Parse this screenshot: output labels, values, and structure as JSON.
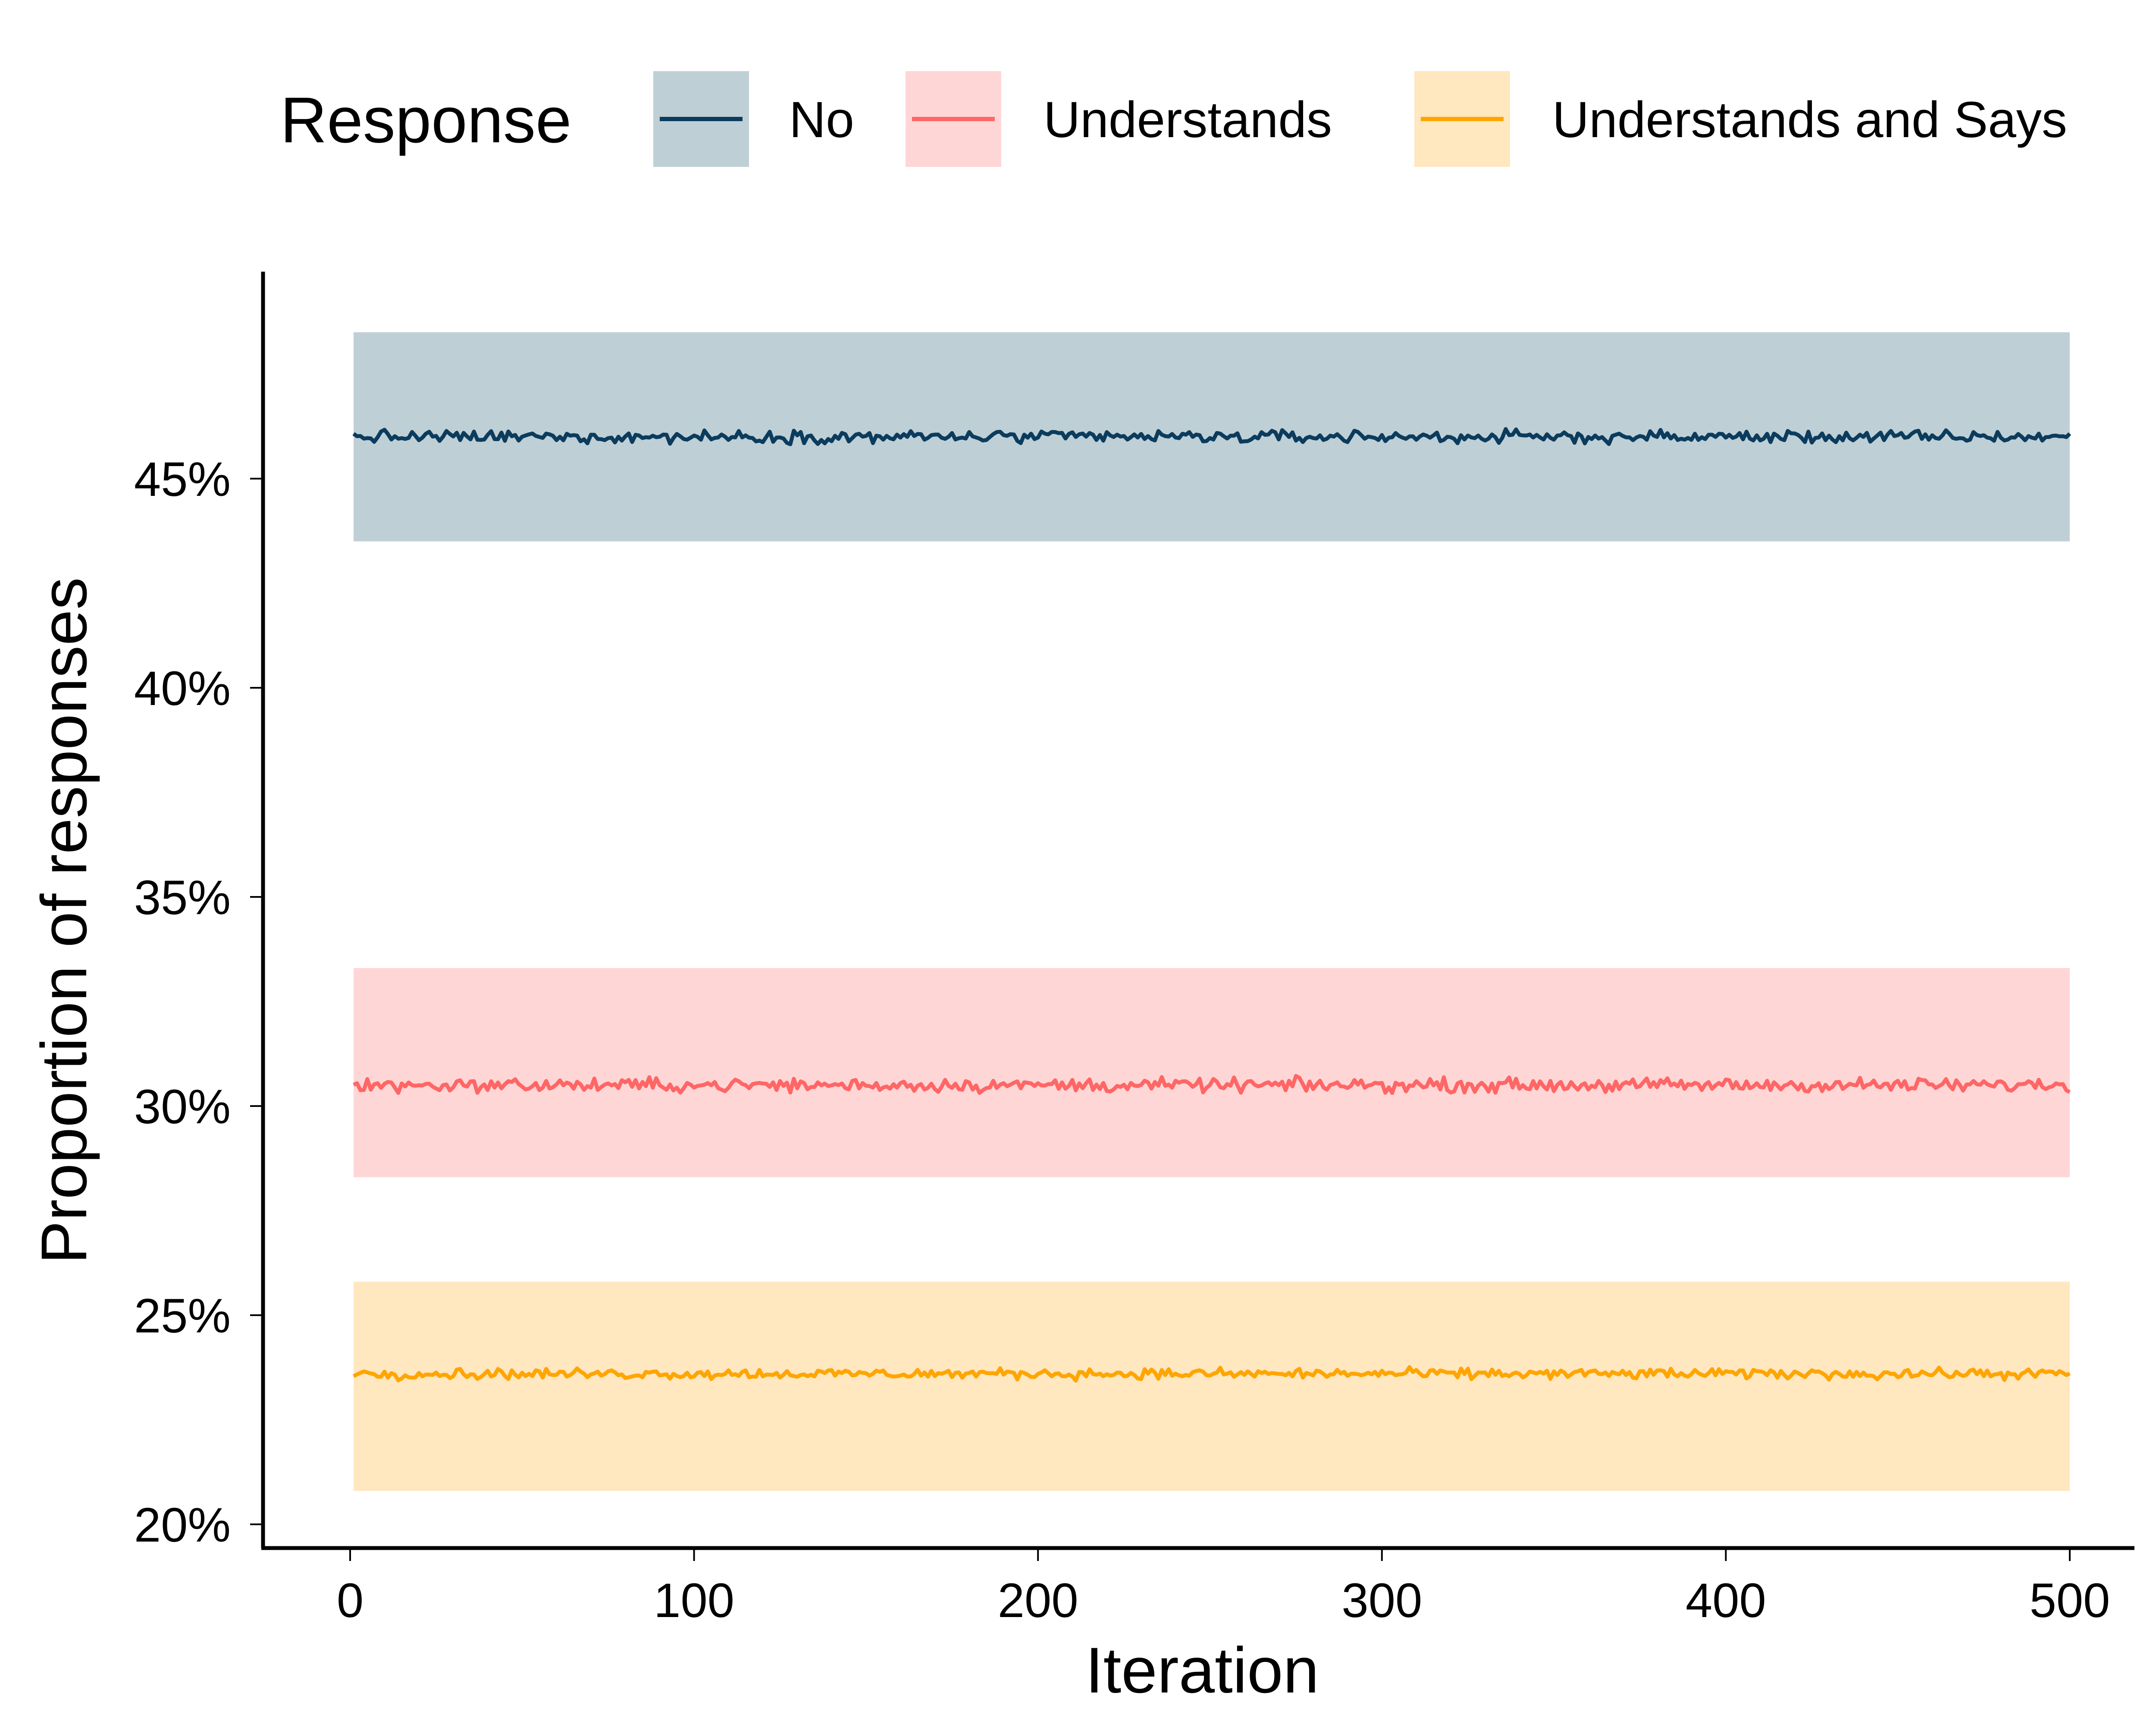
{
  "chart_data": {
    "type": "line",
    "xlabel": "Iteration",
    "ylabel": "Proportion of responses",
    "xlim": [
      0,
      500
    ],
    "ylim": [
      20,
      50
    ],
    "x_ticks": [
      0,
      100,
      200,
      300,
      400,
      500
    ],
    "x_tick_labels": [
      "0",
      "100",
      "200",
      "300",
      "400",
      "500"
    ],
    "y_ticks": [
      20,
      25,
      30,
      35,
      40,
      45
    ],
    "y_tick_labels": [
      "20%",
      "25%",
      "30%",
      "35%",
      "40%",
      "45%"
    ],
    "legend": {
      "title": "Response",
      "position": "top"
    },
    "grid": false,
    "series": [
      {
        "name": "No",
        "color": "#0B3C5D",
        "band_color": "#BFCFD6",
        "mean": 46.0,
        "band": [
          43.5,
          48.5
        ],
        "noise": 0.22
      },
      {
        "name": "Understands",
        "color": "#FF6666",
        "band_color": "#FFD6D6",
        "mean": 30.5,
        "band": [
          28.3,
          33.3
        ],
        "noise": 0.24
      },
      {
        "name": "Understands and Says",
        "color": "#FFA500",
        "band_color": "#FFE7BF",
        "mean": 23.6,
        "band": [
          20.8,
          25.8
        ],
        "noise": 0.18
      }
    ],
    "x_start": 1,
    "x_end": 500
  }
}
